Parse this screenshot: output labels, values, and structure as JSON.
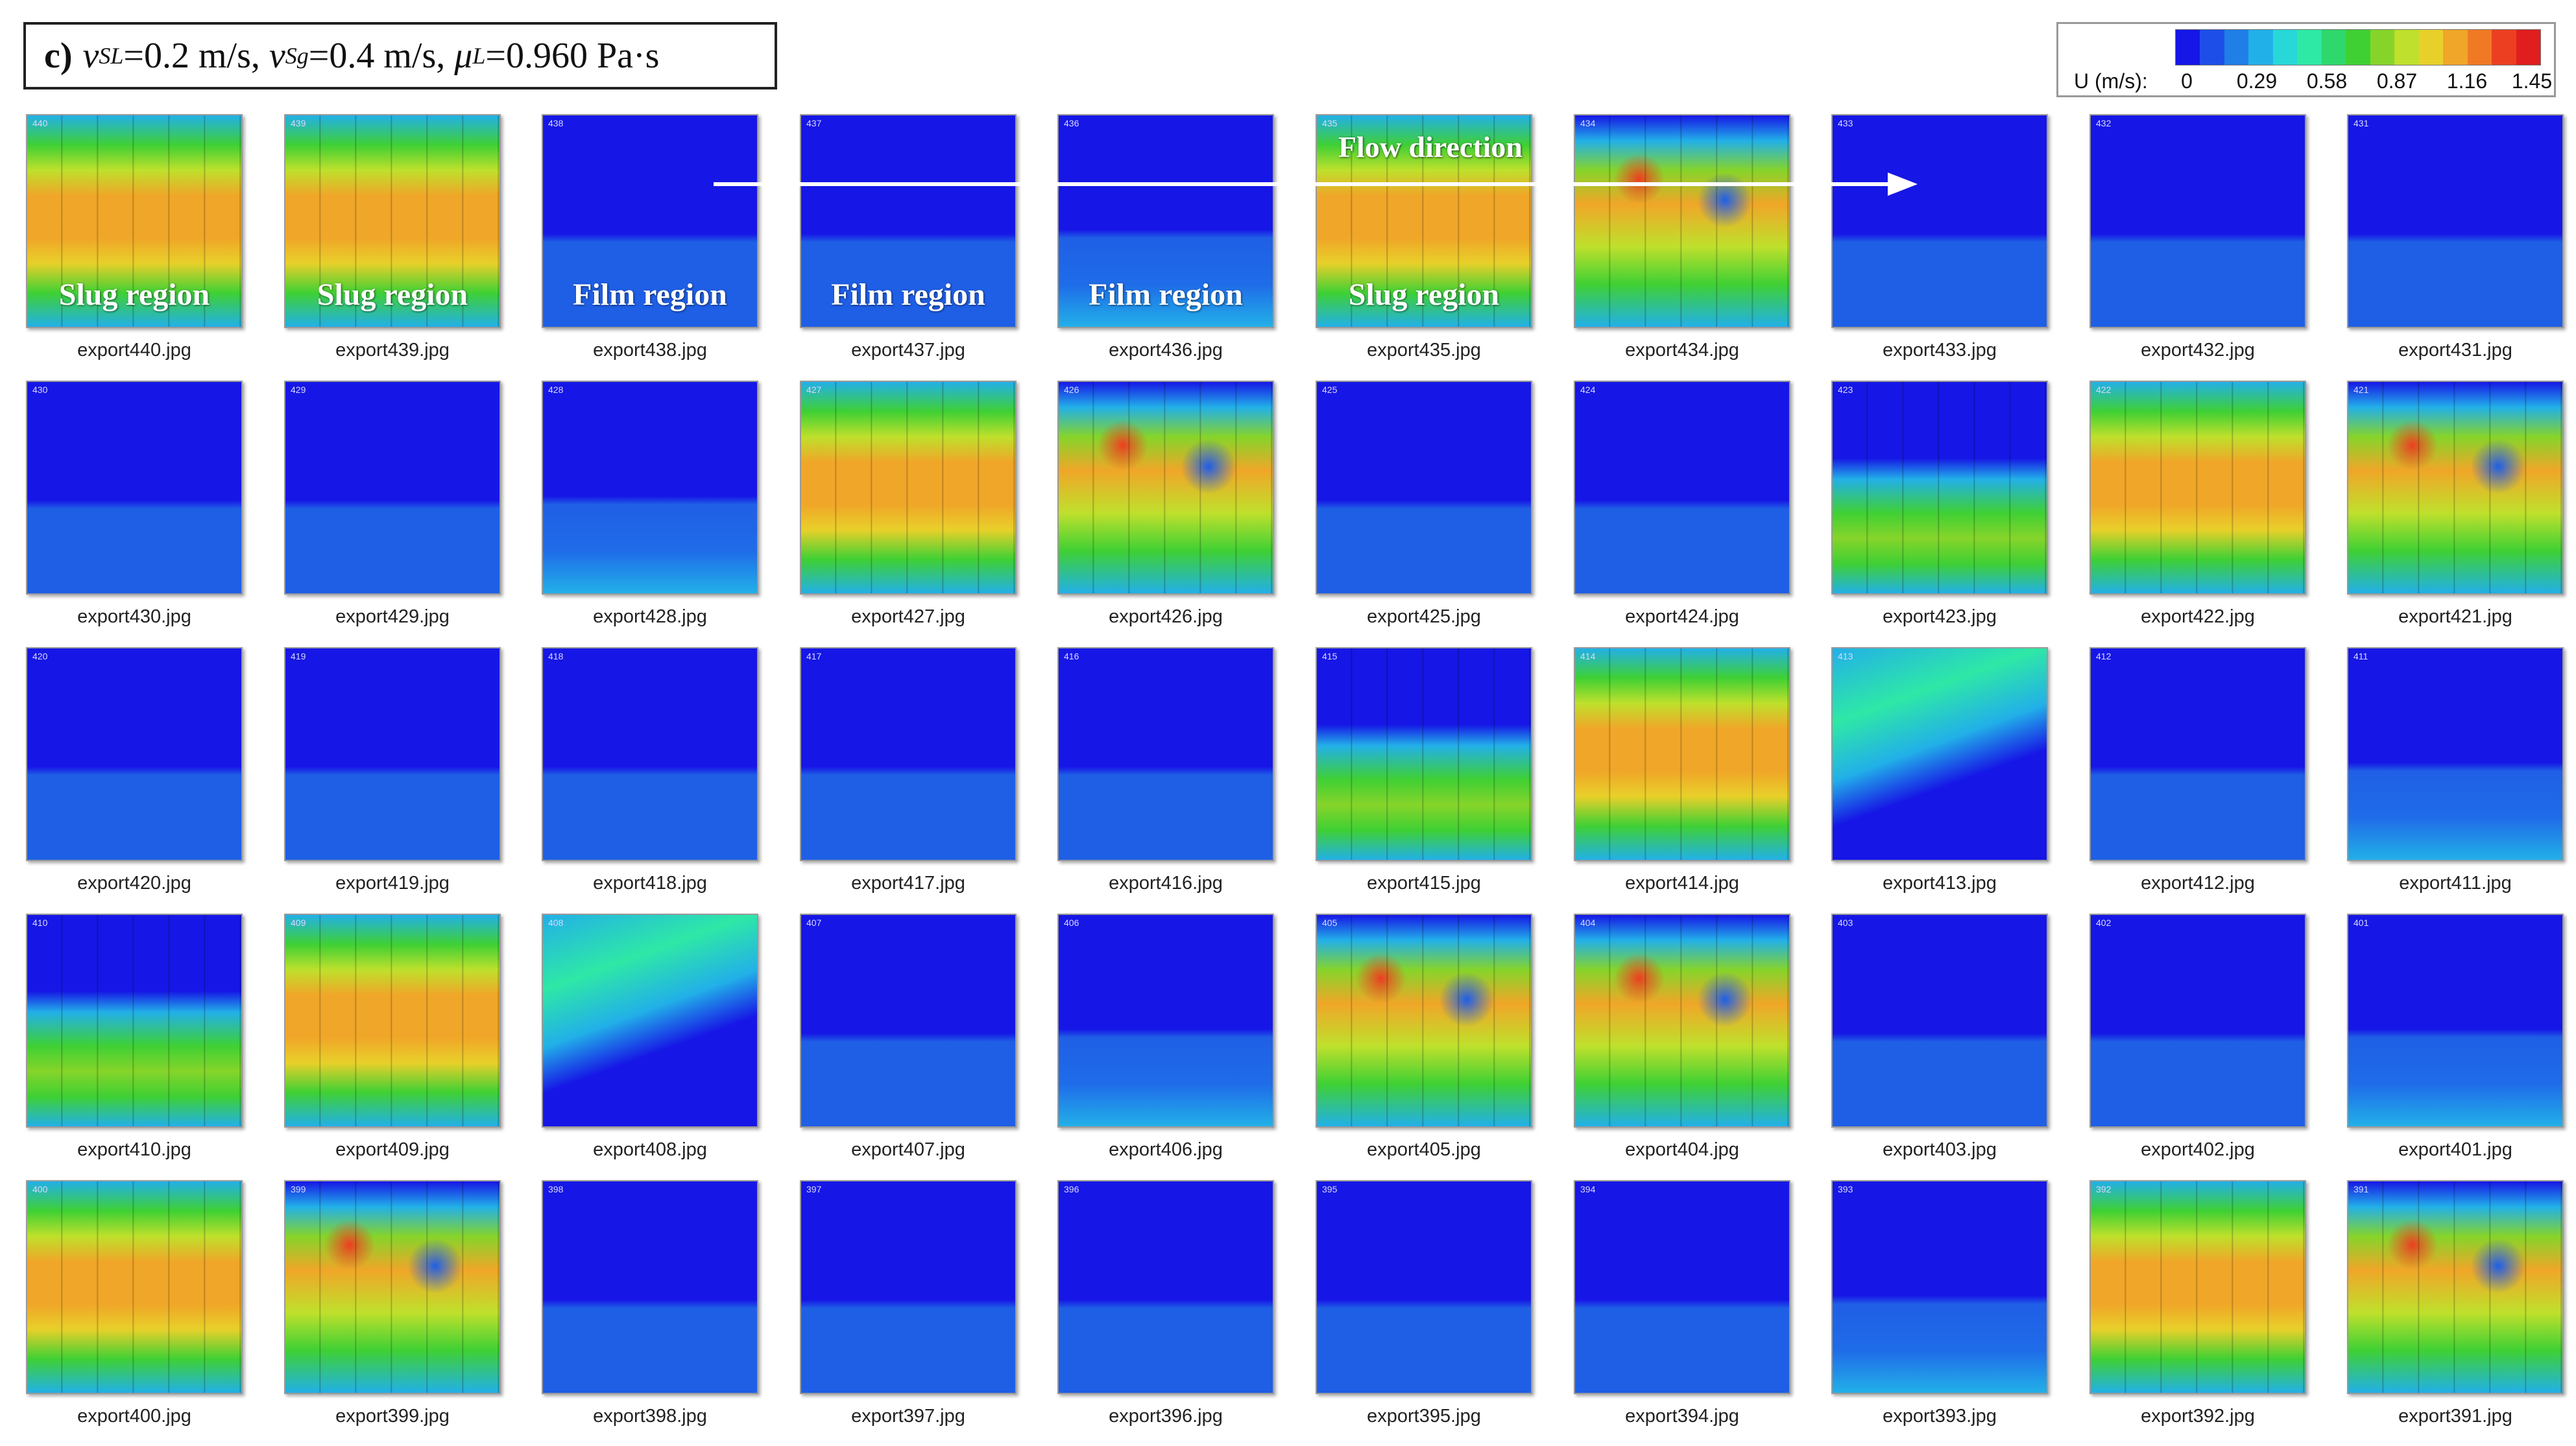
{
  "title": {
    "label": "c)",
    "v": "v",
    "sl_sub": "SL",
    "sl_value": "=0.2 m/s,",
    "sg_sub": "Sg",
    "sg_value": "=0.4 m/s,",
    "mu": "μ",
    "mu_sub": "L",
    "mu_value": "=0.960 Pa·s"
  },
  "legend": {
    "unit": "U (m/s):",
    "ticks": [
      "0",
      "0.29",
      "0.58",
      "0.87",
      "1.16",
      "1.45"
    ],
    "colors": [
      "#1616e6",
      "#1d4fe8",
      "#1f7fe6",
      "#22b0e8",
      "#28d8d8",
      "#2ee8a6",
      "#2fd86c",
      "#3fd034",
      "#86d42a",
      "#bfe02c",
      "#e8d02a",
      "#f0a628",
      "#f07a24",
      "#ec3f22",
      "#e01e1e"
    ]
  },
  "flow": {
    "label": "Flow direction"
  },
  "panels": [
    {
      "name": "export440.jpg",
      "frame": "440",
      "type": "slug",
      "region": "Slug region"
    },
    {
      "name": "export439.jpg",
      "frame": "439",
      "type": "slug",
      "region": "Slug region"
    },
    {
      "name": "export438.jpg",
      "frame": "438",
      "type": "film",
      "region": "Film region"
    },
    {
      "name": "export437.jpg",
      "frame": "437",
      "type": "film",
      "region": "Film region"
    },
    {
      "name": "export436.jpg",
      "frame": "436",
      "type": "film2",
      "region": "Film region"
    },
    {
      "name": "export435.jpg",
      "frame": "435",
      "type": "slug",
      "region": "Slug region"
    },
    {
      "name": "export434.jpg",
      "frame": "434",
      "type": "slug2",
      "region": ""
    },
    {
      "name": "export433.jpg",
      "frame": "433",
      "type": "film",
      "region": ""
    },
    {
      "name": "export432.jpg",
      "frame": "432",
      "type": "film",
      "region": ""
    },
    {
      "name": "export431.jpg",
      "frame": "431",
      "type": "film",
      "region": ""
    },
    {
      "name": "export430.jpg",
      "frame": "430",
      "type": "film",
      "region": ""
    },
    {
      "name": "export429.jpg",
      "frame": "429",
      "type": "film",
      "region": ""
    },
    {
      "name": "export428.jpg",
      "frame": "428",
      "type": "film2",
      "region": ""
    },
    {
      "name": "export427.jpg",
      "frame": "427",
      "type": "slug",
      "region": ""
    },
    {
      "name": "export426.jpg",
      "frame": "426",
      "type": "slug2",
      "region": ""
    },
    {
      "name": "export425.jpg",
      "frame": "425",
      "type": "film",
      "region": ""
    },
    {
      "name": "export424.jpg",
      "frame": "424",
      "type": "film",
      "region": ""
    },
    {
      "name": "export423.jpg",
      "frame": "423",
      "type": "front",
      "region": ""
    },
    {
      "name": "export422.jpg",
      "frame": "422",
      "type": "slug",
      "region": ""
    },
    {
      "name": "export421.jpg",
      "frame": "421",
      "type": "slug2",
      "region": ""
    },
    {
      "name": "export420.jpg",
      "frame": "420",
      "type": "film",
      "region": ""
    },
    {
      "name": "export419.jpg",
      "frame": "419",
      "type": "film",
      "region": ""
    },
    {
      "name": "export418.jpg",
      "frame": "418",
      "type": "film",
      "region": ""
    },
    {
      "name": "export417.jpg",
      "frame": "417",
      "type": "film",
      "region": ""
    },
    {
      "name": "export416.jpg",
      "frame": "416",
      "type": "film",
      "region": ""
    },
    {
      "name": "export415.jpg",
      "frame": "415",
      "type": "front",
      "region": ""
    },
    {
      "name": "export414.jpg",
      "frame": "414",
      "type": "slug",
      "region": ""
    },
    {
      "name": "export413.jpg",
      "frame": "413",
      "type": "tail",
      "region": ""
    },
    {
      "name": "export412.jpg",
      "frame": "412",
      "type": "film",
      "region": ""
    },
    {
      "name": "export411.jpg",
      "frame": "411",
      "type": "film2",
      "region": ""
    },
    {
      "name": "export410.jpg",
      "frame": "410",
      "type": "front",
      "region": ""
    },
    {
      "name": "export409.jpg",
      "frame": "409",
      "type": "slug",
      "region": ""
    },
    {
      "name": "export408.jpg",
      "frame": "408",
      "type": "tail",
      "region": ""
    },
    {
      "name": "export407.jpg",
      "frame": "407",
      "type": "film",
      "region": ""
    },
    {
      "name": "export406.jpg",
      "frame": "406",
      "type": "film2",
      "region": ""
    },
    {
      "name": "export405.jpg",
      "frame": "405",
      "type": "slug2",
      "region": ""
    },
    {
      "name": "export404.jpg",
      "frame": "404",
      "type": "slug2",
      "region": ""
    },
    {
      "name": "export403.jpg",
      "frame": "403",
      "type": "film",
      "region": ""
    },
    {
      "name": "export402.jpg",
      "frame": "402",
      "type": "film",
      "region": ""
    },
    {
      "name": "export401.jpg",
      "frame": "401",
      "type": "film2",
      "region": ""
    },
    {
      "name": "export400.jpg",
      "frame": "400",
      "type": "slug",
      "region": ""
    },
    {
      "name": "export399.jpg",
      "frame": "399",
      "type": "slug2",
      "region": ""
    },
    {
      "name": "export398.jpg",
      "frame": "398",
      "type": "film",
      "region": ""
    },
    {
      "name": "export397.jpg",
      "frame": "397",
      "type": "film",
      "region": ""
    },
    {
      "name": "export396.jpg",
      "frame": "396",
      "type": "film",
      "region": ""
    },
    {
      "name": "export395.jpg",
      "frame": "395",
      "type": "film",
      "region": ""
    },
    {
      "name": "export394.jpg",
      "frame": "394",
      "type": "film",
      "region": ""
    },
    {
      "name": "export393.jpg",
      "frame": "393",
      "type": "film2",
      "region": ""
    },
    {
      "name": "export392.jpg",
      "frame": "392",
      "type": "slug",
      "region": ""
    },
    {
      "name": "export391.jpg",
      "frame": "391",
      "type": "slug2",
      "region": ""
    }
  ]
}
